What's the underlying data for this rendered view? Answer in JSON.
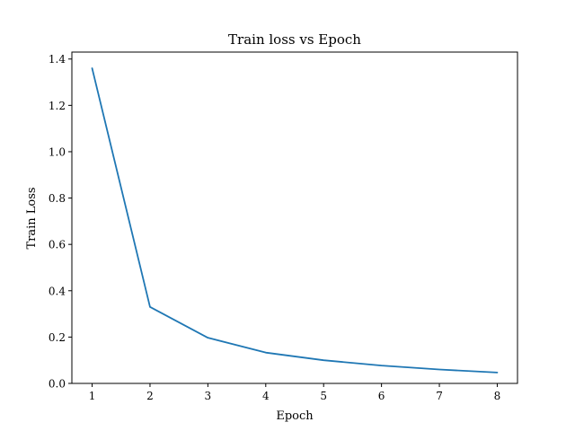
{
  "chart_data": {
    "type": "line",
    "title": "Train loss vs Epoch",
    "xlabel": "Epoch",
    "ylabel": "Train Loss",
    "x": [
      1,
      2,
      3,
      4,
      5,
      6,
      7,
      8
    ],
    "series": [
      {
        "values": [
          1.36,
          0.33,
          0.197,
          0.133,
          0.1,
          0.077,
          0.06,
          0.047
        ],
        "color": "#1f77b4"
      }
    ],
    "xlim": [
      0.65,
      8.35
    ],
    "ylim": [
      -0.0,
      1.43
    ],
    "xticks": [
      "1",
      "2",
      "3",
      "4",
      "5",
      "6",
      "7",
      "8"
    ],
    "yticks": [
      "0.0",
      "0.2",
      "0.4",
      "0.6",
      "0.8",
      "1.0",
      "1.2",
      "1.4"
    ],
    "grid": false,
    "legend": "none"
  }
}
